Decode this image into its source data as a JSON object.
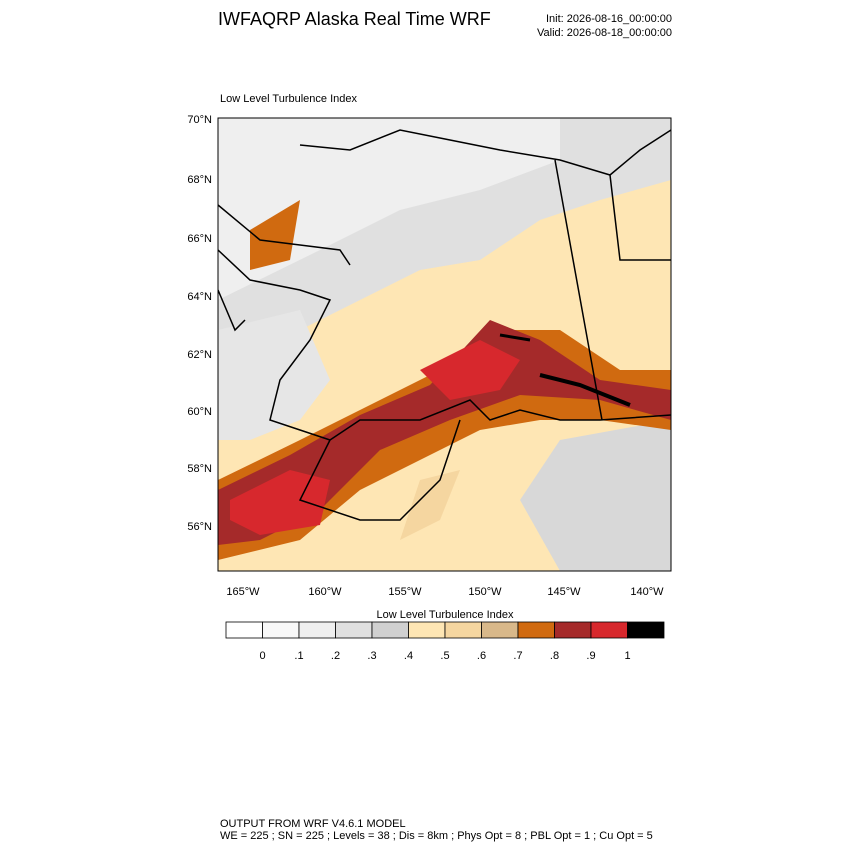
{
  "header": {
    "title": "IWFAQRP Alaska Real Time WRF",
    "init": "Init: 2026-08-16_00:00:00",
    "valid": "Valid: 2026-08-18_00:00:00"
  },
  "map": {
    "title": "Low Level Turbulence Index",
    "lat_labels": [
      "70°N",
      "68°N",
      "66°N",
      "64°N",
      "62°N",
      "60°N",
      "58°N",
      "56°N"
    ],
    "lon_labels": [
      "165°W",
      "160°W",
      "155°W",
      "150°W",
      "145°W",
      "140°W"
    ]
  },
  "colorbar": {
    "title": "Low Level Turbulence Index",
    "colors": [
      "#ffffff",
      "#f8f8f8",
      "#efefef",
      "#e0e0e0",
      "#d0d0d0",
      "#fee6b4",
      "#f5d6a0",
      "#d8b88a",
      "#d06a10",
      "#a52a2a",
      "#d7282d",
      "#000000"
    ],
    "labels": [
      "0",
      ".1",
      ".2",
      ".3",
      ".4",
      ".5",
      ".6",
      ".7",
      ".8",
      ".9",
      "1"
    ]
  },
  "footer": {
    "line1": "OUTPUT FROM WRF V4.6.1 MODEL",
    "line2": "WE = 225 ; SN = 225 ; Levels = 38 ; Dis = 8km ; Phys Opt = 8 ; PBL Opt = 1 ; Cu Opt = 5"
  }
}
